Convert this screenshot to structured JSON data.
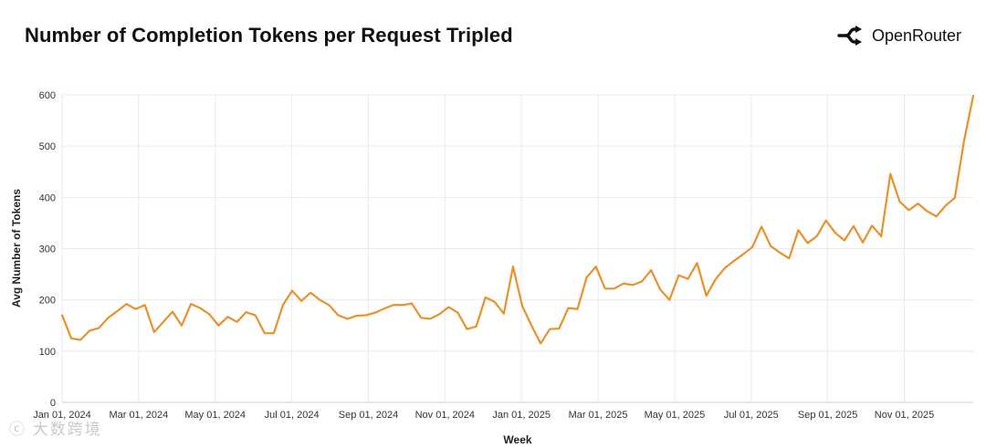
{
  "header": {
    "title": "Number of Completion Tokens per Request Tripled",
    "brand": "OpenRouter"
  },
  "watermark": "ⓒ 大数跨境",
  "colors": {
    "line": "#E8912D",
    "grid": "#EBEBEB"
  },
  "chart_data": {
    "type": "line",
    "title": "Number of Completion Tokens per Request Tripled",
    "xlabel": "Week",
    "ylabel": "Avg Number of Tokens",
    "ylim": [
      0,
      600
    ],
    "yticks": [
      0,
      100,
      200,
      300,
      400,
      500,
      600
    ],
    "xticks": [
      "Jan 01, 2024",
      "Mar 01, 2024",
      "May 01, 2024",
      "Jul 01, 2024",
      "Sep 01, 2024",
      "Nov 01, 2024",
      "Jan 01, 2025",
      "Mar 01, 2025",
      "May 01, 2025",
      "Jul 01, 2025",
      "Sep 01, 2025",
      "Nov 01, 2025"
    ],
    "grid": true,
    "series": [
      {
        "name": "Avg Number of Tokens",
        "values": [
          170,
          125,
          122,
          140,
          145,
          165,
          178,
          192,
          182,
          190,
          137,
          157,
          177,
          150,
          192,
          184,
          172,
          150,
          167,
          157,
          176,
          170,
          135,
          135,
          190,
          218,
          198,
          214,
          200,
          190,
          170,
          163,
          169,
          170,
          175,
          183,
          190,
          190,
          193,
          165,
          163,
          172,
          186,
          175,
          143,
          148,
          205,
          196,
          173,
          265,
          188,
          150,
          115,
          143,
          144,
          184,
          182,
          244,
          265,
          222,
          222,
          232,
          229,
          236,
          258,
          220,
          200,
          248,
          241,
          272,
          208,
          240,
          262,
          276,
          289,
          303,
          343,
          305,
          292,
          281,
          336,
          311,
          324,
          355,
          331,
          316,
          344,
          312,
          345,
          324,
          446,
          392,
          375,
          388,
          373,
          363,
          384,
          399,
          510,
          598
        ]
      }
    ]
  }
}
